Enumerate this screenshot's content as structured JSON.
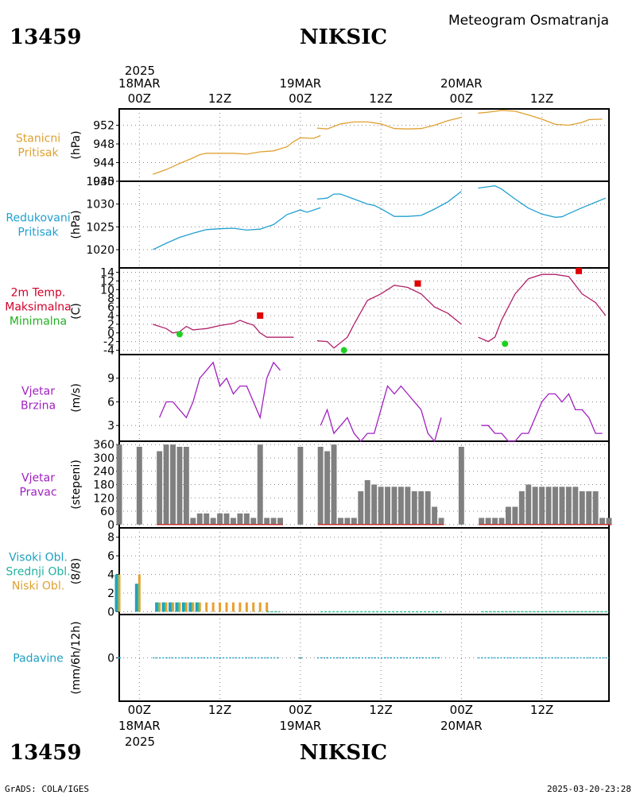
{
  "header": {
    "station_id": "13459",
    "station_name": "NIKSIC",
    "meteogram_title": "Meteogram Osmatranja"
  },
  "footer": {
    "station_id": "13459",
    "station_name": "NIKSIC",
    "credit": "GrADS: COLA/IGES",
    "timestamp": "2025-03-20-23:28"
  },
  "time_axis": {
    "year": "2025",
    "days": [
      {
        "date": "18MAR",
        "hour": "00Z"
      },
      {
        "date": "19MAR",
        "hour": "00Z"
      },
      {
        "date": "20MAR",
        "hour": "00Z"
      }
    ],
    "midday_label": "12Z",
    "x_start": -3,
    "x_end": 70
  },
  "panels": {
    "stanicni": {
      "label_lines": [
        "Stanicni",
        "Pritisak"
      ],
      "unit": "(hPa)",
      "color": "#e0a030",
      "ticks": [
        "952",
        "948",
        "944",
        "940"
      ],
      "tick_values": [
        952,
        948,
        944,
        940
      ],
      "ylim": [
        940,
        955.5
      ]
    },
    "redukovani": {
      "label_lines": [
        "Redukovani",
        "Pritisak"
      ],
      "unit": "(hPa)",
      "color": "#20a0d0",
      "ticks": [
        "1035",
        "1030",
        "1025",
        "1020"
      ],
      "tick_values": [
        1035,
        1030,
        1025,
        1020
      ],
      "ylim": [
        1016,
        1035
      ]
    },
    "temperature": {
      "label_lines": [
        "2m Temp.",
        "Maksimalna",
        "Minimalna"
      ],
      "label_colors": [
        "#d0002a",
        "#d0002a",
        "#20b020"
      ],
      "unit": "(C)",
      "color": "#b0206a",
      "ticks": [
        "14",
        "12",
        "10",
        "8",
        "6",
        "4",
        "2",
        "0",
        "-2",
        "-4"
      ],
      "tick_values": [
        14,
        12,
        10,
        8,
        6,
        4,
        2,
        0,
        -2,
        -4
      ],
      "ylim": [
        -5,
        15
      ]
    },
    "wind_speed": {
      "label_lines": [
        "Vjetar",
        "Brzina"
      ],
      "unit": "(m/s)",
      "color": "#a020c0",
      "ticks": [
        "9",
        "6",
        "3"
      ],
      "tick_values": [
        9,
        6,
        3
      ],
      "ylim": [
        1,
        12
      ]
    },
    "wind_dir": {
      "label_lines": [
        "Vjetar",
        "Pravac"
      ],
      "unit": "(stepeni)",
      "color": "#a020c0",
      "bar_color": "#808080",
      "baseline_color": "#c03030",
      "ticks": [
        "360",
        "300",
        "240",
        "180",
        "120",
        "60",
        "0"
      ],
      "tick_values": [
        360,
        300,
        240,
        180,
        120,
        60,
        0
      ],
      "ylim": [
        -15,
        375
      ]
    },
    "clouds": {
      "label_lines": [
        "Visoki Obl.",
        "Srednji Obl.",
        "Niski Obl."
      ],
      "label_colors": [
        "#20a0c0",
        "#20b0a0",
        "#e0a030"
      ],
      "unit": "(8/8)",
      "high_color": "#20a0c0",
      "mid_color": "#30c090",
      "low_color": "#e8a030",
      "ticks": [
        "8",
        "6",
        "4",
        "2",
        "0"
      ],
      "tick_values": [
        8,
        6,
        4,
        2,
        0
      ],
      "ylim": [
        -0.3,
        9
      ]
    },
    "precip": {
      "label_lines": [
        "Padavine"
      ],
      "unit": "(mm/6h/12h)",
      "color": "#20a0c0",
      "ticks": [
        "0"
      ],
      "tick_values": [
        0
      ],
      "ylim": [
        -1,
        1
      ]
    }
  },
  "chart_data": {
    "type": "line",
    "title": "Meteogram Osmatranja",
    "x_unit": "hours from 18MAR2025 00Z",
    "station_pressure": {
      "segments": [
        [
          [
            2,
            941.5
          ],
          [
            4,
            942.5
          ],
          [
            6,
            943.8
          ],
          [
            8,
            945
          ],
          [
            9,
            945.7
          ],
          [
            10,
            946
          ],
          [
            12,
            946
          ],
          [
            14,
            946
          ],
          [
            16,
            945.8
          ],
          [
            18,
            946.3
          ],
          [
            20,
            946.5
          ],
          [
            22,
            947.4
          ],
          [
            23,
            948.5
          ],
          [
            24,
            949.3
          ],
          [
            26,
            949.2
          ],
          [
            27,
            949.8
          ]
        ],
        [
          [
            26.5,
            951.4
          ],
          [
            28,
            951.2
          ],
          [
            30,
            952.3
          ],
          [
            32,
            952.7
          ],
          [
            34,
            952.7
          ],
          [
            36,
            952.3
          ],
          [
            38,
            951.3
          ],
          [
            40,
            951.2
          ],
          [
            42,
            951.3
          ],
          [
            44,
            952
          ],
          [
            46,
            953
          ],
          [
            48,
            953.7
          ]
        ],
        [
          [
            50.5,
            954.6
          ],
          [
            52,
            954.8
          ],
          [
            54,
            955.2
          ],
          [
            56,
            955
          ],
          [
            58,
            954.2
          ],
          [
            60,
            953.3
          ],
          [
            62,
            952.2
          ],
          [
            64,
            952
          ],
          [
            66,
            952.6
          ],
          [
            67,
            953.2
          ],
          [
            69,
            953.3
          ]
        ]
      ]
    },
    "reduced_pressure": {
      "segments": [
        [
          [
            2,
            1020
          ],
          [
            4,
            1021.4
          ],
          [
            6,
            1022.7
          ],
          [
            8,
            1023.6
          ],
          [
            10,
            1024.4
          ],
          [
            12,
            1024.6
          ],
          [
            14,
            1024.7
          ],
          [
            16,
            1024.3
          ],
          [
            18,
            1024.5
          ],
          [
            20,
            1025.5
          ],
          [
            22,
            1027.7
          ],
          [
            24,
            1028.7
          ],
          [
            25,
            1028.2
          ],
          [
            27,
            1029.2
          ]
        ],
        [
          [
            26.5,
            1031.1
          ],
          [
            28,
            1031.3
          ],
          [
            29,
            1032.2
          ],
          [
            30,
            1032.2
          ],
          [
            32,
            1031.1
          ],
          [
            34,
            1030
          ],
          [
            35,
            1029.7
          ],
          [
            36,
            1029
          ],
          [
            38,
            1027.3
          ],
          [
            40,
            1027.3
          ],
          [
            42,
            1027.5
          ],
          [
            44,
            1028.9
          ],
          [
            46,
            1030.5
          ],
          [
            48,
            1032.8
          ]
        ],
        [
          [
            50.5,
            1033.5
          ],
          [
            52,
            1033.8
          ],
          [
            53,
            1034
          ],
          [
            54,
            1033.3
          ],
          [
            56,
            1031.1
          ],
          [
            58,
            1029.1
          ],
          [
            60,
            1027.8
          ],
          [
            62,
            1027.1
          ],
          [
            63,
            1027.2
          ],
          [
            64,
            1027.9
          ],
          [
            66,
            1029.2
          ],
          [
            68,
            1030.4
          ],
          [
            69.5,
            1031.3
          ]
        ]
      ]
    },
    "temperature": {
      "segments": [
        [
          [
            2,
            2
          ],
          [
            4,
            1
          ],
          [
            5,
            0
          ],
          [
            6,
            0.3
          ],
          [
            7,
            1.5
          ],
          [
            8,
            0.7
          ],
          [
            10,
            1
          ],
          [
            12,
            1.7
          ],
          [
            14,
            2.2
          ],
          [
            15,
            2.9
          ],
          [
            16,
            2.3
          ],
          [
            17,
            1.8
          ],
          [
            18,
            0
          ],
          [
            19,
            -1
          ],
          [
            21,
            -1
          ],
          [
            23,
            -1
          ]
        ],
        [
          [
            26.5,
            -1.8
          ],
          [
            28,
            -2
          ],
          [
            29,
            -3.5
          ],
          [
            31,
            -1
          ],
          [
            32,
            2
          ],
          [
            34,
            7.5
          ],
          [
            36,
            9
          ],
          [
            38,
            11
          ],
          [
            40,
            10.5
          ],
          [
            42,
            9
          ],
          [
            44,
            6
          ],
          [
            46,
            4.5
          ],
          [
            48,
            2
          ]
        ],
        [
          [
            50.5,
            -1
          ],
          [
            52,
            -2
          ],
          [
            53,
            -1
          ],
          [
            54,
            3
          ],
          [
            56,
            9
          ],
          [
            58,
            12.5
          ],
          [
            60,
            13.5
          ],
          [
            62,
            13.5
          ],
          [
            64,
            13
          ],
          [
            66,
            9
          ],
          [
            68,
            7
          ],
          [
            69.5,
            4
          ]
        ]
      ],
      "max_points": [
        [
          18,
          4
        ],
        [
          41.5,
          11.4
        ],
        [
          65.5,
          14.3
        ]
      ],
      "min_points": [
        [
          6,
          -0.3
        ],
        [
          30.5,
          -4
        ],
        [
          54.5,
          -2.5
        ]
      ]
    },
    "wind_speed": {
      "segments": [
        [
          [
            3,
            4
          ],
          [
            4,
            6
          ],
          [
            5,
            6
          ],
          [
            6,
            5
          ],
          [
            7,
            4
          ],
          [
            8,
            6
          ],
          [
            9,
            9
          ],
          [
            10,
            10
          ],
          [
            11,
            11
          ],
          [
            12,
            8
          ],
          [
            13,
            9
          ],
          [
            14,
            7
          ],
          [
            15,
            8
          ],
          [
            16,
            8
          ],
          [
            17,
            6
          ],
          [
            18,
            4
          ],
          [
            19,
            9
          ],
          [
            20,
            11
          ],
          [
            21,
            10
          ]
        ],
        [
          [
            27,
            3
          ],
          [
            28,
            5
          ],
          [
            29,
            2
          ],
          [
            30,
            3
          ],
          [
            31,
            4
          ],
          [
            32,
            2
          ],
          [
            33,
            1
          ],
          [
            34,
            2
          ],
          [
            35,
            2
          ],
          [
            36,
            5
          ],
          [
            37,
            8
          ],
          [
            38,
            7
          ],
          [
            39,
            8
          ],
          [
            40,
            7
          ],
          [
            41,
            6
          ],
          [
            42,
            5
          ],
          [
            43,
            2
          ],
          [
            44,
            1
          ],
          [
            45,
            4
          ]
        ],
        [
          [
            51,
            3
          ],
          [
            52,
            3
          ],
          [
            53,
            2
          ],
          [
            54,
            2
          ],
          [
            55,
            1
          ],
          [
            56,
            1
          ],
          [
            57,
            2
          ],
          [
            58,
            2
          ],
          [
            59,
            4
          ],
          [
            60,
            6
          ],
          [
            61,
            7
          ],
          [
            62,
            7
          ],
          [
            63,
            6
          ],
          [
            64,
            7
          ],
          [
            65,
            5
          ],
          [
            66,
            5
          ],
          [
            67,
            4
          ],
          [
            68,
            2
          ],
          [
            69,
            2
          ]
        ]
      ]
    },
    "wind_direction": {
      "hours": [
        -3,
        0,
        3,
        4,
        5,
        6,
        7,
        8,
        9,
        10,
        11,
        12,
        13,
        14,
        15,
        16,
        17,
        18,
        19,
        20,
        21,
        24,
        27,
        28,
        29,
        30,
        31,
        32,
        33,
        34,
        35,
        36,
        37,
        38,
        39,
        40,
        41,
        42,
        43,
        44,
        45,
        48,
        51,
        52,
        53,
        54,
        55,
        56,
        57,
        58,
        59,
        60,
        61,
        62,
        63,
        64,
        65,
        66,
        67,
        68,
        69,
        70
      ],
      "values": [
        360,
        350,
        330,
        360,
        360,
        350,
        350,
        30,
        50,
        50,
        30,
        50,
        50,
        30,
        50,
        50,
        30,
        360,
        30,
        30,
        30,
        350,
        350,
        330,
        360,
        30,
        30,
        30,
        150,
        200,
        180,
        170,
        170,
        170,
        170,
        170,
        150,
        150,
        150,
        80,
        30,
        350,
        30,
        30,
        30,
        30,
        80,
        80,
        150,
        180,
        170,
        170,
        170,
        170,
        170,
        170,
        170,
        150,
        150,
        150,
        30,
        30
      ]
    },
    "clouds": {
      "high": [
        [
          -3,
          4
        ],
        [
          0,
          3
        ],
        [
          3,
          1
        ],
        [
          4,
          1
        ],
        [
          5,
          1
        ],
        [
          6,
          1
        ],
        [
          7,
          1
        ],
        [
          8,
          1
        ],
        [
          9,
          1
        ]
      ],
      "mid": [
        [
          -3,
          4
        ],
        [
          0,
          3
        ],
        [
          3,
          1
        ],
        [
          4,
          1
        ],
        [
          5,
          1
        ],
        [
          6,
          1
        ],
        [
          7,
          1
        ],
        [
          8,
          1
        ],
        [
          9,
          1
        ]
      ],
      "low": [
        [
          -3,
          4
        ],
        [
          0,
          4
        ],
        [
          3,
          1
        ],
        [
          4,
          1
        ],
        [
          5,
          1
        ],
        [
          6,
          1
        ],
        [
          7,
          1
        ],
        [
          8,
          1
        ],
        [
          9,
          1
        ],
        [
          10,
          1
        ],
        [
          11,
          1
        ],
        [
          12,
          1
        ],
        [
          13,
          1
        ],
        [
          14,
          1
        ],
        [
          15,
          1
        ],
        [
          16,
          1
        ],
        [
          17,
          1
        ],
        [
          18,
          1
        ],
        [
          19,
          1
        ]
      ],
      "flat_segments": [
        [
          19,
          21
        ],
        [
          27,
          45
        ],
        [
          51,
          70
        ]
      ]
    },
    "precipitation": {
      "segments": [
        [
          2,
          21
        ],
        [
          26.5,
          45
        ],
        [
          50.5,
          70
        ]
      ],
      "dots": [
        -3,
        24
      ]
    }
  }
}
